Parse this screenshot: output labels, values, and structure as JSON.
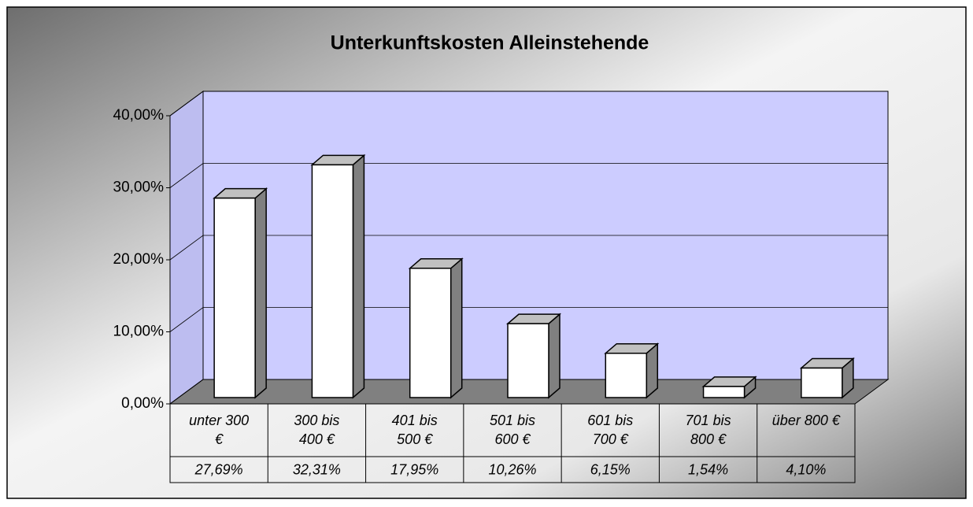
{
  "chart_data": {
    "type": "bar3d",
    "title": "Unterkunftskosten Alleinstehende",
    "categories": [
      "unter 300 €",
      "300 bis 400 €",
      "401 bis 500 €",
      "501 bis 600 €",
      "601 bis 700 €",
      "701 bis 800 €",
      "über 800 €"
    ],
    "values": [
      27.69,
      32.31,
      17.95,
      10.26,
      6.15,
      1.54,
      4.1
    ],
    "value_labels": [
      "27,69%",
      "32,31%",
      "17,95%",
      "10,26%",
      "6,15%",
      "1,54%",
      "4,10%"
    ],
    "color": "#ffffff",
    "ylim": [
      0,
      40
    ],
    "yticks": [
      {
        "value": 0,
        "label": "0,00%"
      },
      {
        "value": 10,
        "label": "10,00%"
      },
      {
        "value": 20,
        "label": "20,00%"
      },
      {
        "value": 30,
        "label": "30,00%"
      },
      {
        "value": 40,
        "label": "40,00%"
      }
    ],
    "grid": true
  }
}
